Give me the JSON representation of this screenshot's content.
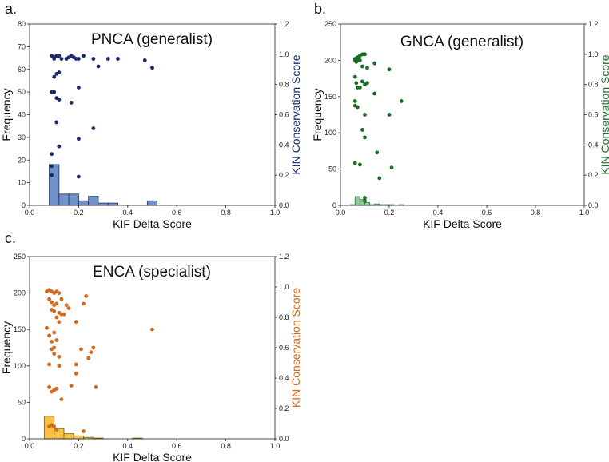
{
  "chart_data": [
    {
      "type": "scatter",
      "panel_label": "a.",
      "title": "PNCA (generalist)",
      "xlabel": "KIF Delta Score",
      "ylabel": "Frequency",
      "y2label": "KIN Conservation Score",
      "xlim": [
        0.0,
        1.0
      ],
      "ylim": [
        0,
        80
      ],
      "y2lim": [
        0.0,
        1.2
      ],
      "xticks": [
        "0.0",
        "0.2",
        "0.4",
        "0.6",
        "0.8",
        "1.0"
      ],
      "yticks": [
        "0",
        "10",
        "20",
        "30",
        "40",
        "50",
        "60",
        "70",
        "80"
      ],
      "y2ticks": [
        "0.0",
        "0.2",
        "0.4",
        "0.6",
        "0.8",
        "1.0",
        "1.2"
      ],
      "colors": {
        "bar_fill": "#7092c8",
        "bar_edge": "#2a3d63",
        "point": "#1a2a6c",
        "y2label": "#1a2a6c"
      },
      "histogram": {
        "bin_edges": [
          0.08,
          0.12,
          0.16,
          0.2,
          0.24,
          0.28,
          0.32,
          0.36,
          0.4,
          0.44,
          0.48,
          0.52
        ],
        "counts": [
          18,
          5,
          5,
          2,
          4,
          1,
          1,
          0,
          0,
          0,
          2
        ]
      },
      "points": [
        [
          0.09,
          0.99
        ],
        [
          0.1,
          0.98
        ],
        [
          0.1,
          0.97
        ],
        [
          0.11,
          0.99
        ],
        [
          0.12,
          0.99
        ],
        [
          0.13,
          0.97
        ],
        [
          0.15,
          0.97
        ],
        [
          0.16,
          0.98
        ],
        [
          0.17,
          0.99
        ],
        [
          0.18,
          0.98
        ],
        [
          0.19,
          0.97
        ],
        [
          0.2,
          0.97
        ],
        [
          0.22,
          0.99
        ],
        [
          0.26,
          0.97
        ],
        [
          0.28,
          0.92
        ],
        [
          0.32,
          0.97
        ],
        [
          0.36,
          0.97
        ],
        [
          0.47,
          0.96
        ],
        [
          0.5,
          0.91
        ],
        [
          0.1,
          0.85
        ],
        [
          0.11,
          0.87
        ],
        [
          0.12,
          0.88
        ],
        [
          0.1,
          0.75
        ],
        [
          0.09,
          0.75
        ],
        [
          0.12,
          0.7
        ],
        [
          0.11,
          0.71
        ],
        [
          0.17,
          0.68
        ],
        [
          0.2,
          0.78
        ],
        [
          0.11,
          0.55
        ],
        [
          0.26,
          0.51
        ],
        [
          0.2,
          0.44
        ],
        [
          0.12,
          0.39
        ],
        [
          0.09,
          0.34
        ],
        [
          0.09,
          0.26
        ],
        [
          0.09,
          0.2
        ],
        [
          0.2,
          0.19
        ]
      ]
    },
    {
      "type": "scatter",
      "panel_label": "b.",
      "title": "GNCA (generalist)",
      "xlabel": "KIF Delta Score",
      "ylabel": "Frequency",
      "y2label": "KIN Conservation Score",
      "xlim": [
        0.0,
        1.0
      ],
      "ylim": [
        0,
        250
      ],
      "y2lim": [
        0.0,
        1.2
      ],
      "xticks": [
        "0.0",
        "0.2",
        "0.4",
        "0.6",
        "0.8",
        "1.0"
      ],
      "yticks": [
        "0",
        "50",
        "100",
        "150",
        "200",
        "250"
      ],
      "y2ticks": [
        "0.0",
        "0.2",
        "0.4",
        "0.6",
        "0.8",
        "1.0",
        "1.2"
      ],
      "colors": {
        "bar_fill": "#8fc79a",
        "bar_edge": "#3e7a49",
        "point": "#1b6b26",
        "y2label": "#1b6b26"
      },
      "histogram": {
        "bin_edges": [
          0.04,
          0.06,
          0.08,
          0.1,
          0.12,
          0.14,
          0.16,
          0.18,
          0.2,
          0.22,
          0.24,
          0.26
        ],
        "counts": [
          1,
          12,
          8,
          4,
          1,
          2,
          1,
          1,
          1,
          0,
          1
        ]
      },
      "points": [
        [
          0.06,
          0.96
        ],
        [
          0.065,
          0.97
        ],
        [
          0.07,
          0.98
        ],
        [
          0.07,
          0.96
        ],
        [
          0.075,
          0.97
        ],
        [
          0.08,
          0.99
        ],
        [
          0.09,
          1.0
        ],
        [
          0.1,
          1.0
        ],
        [
          0.06,
          0.97
        ],
        [
          0.065,
          0.95
        ],
        [
          0.08,
          0.96
        ],
        [
          0.09,
          0.92
        ],
        [
          0.11,
          0.91
        ],
        [
          0.14,
          0.94
        ],
        [
          0.2,
          0.9
        ],
        [
          0.06,
          0.85
        ],
        [
          0.065,
          0.81
        ],
        [
          0.07,
          0.78
        ],
        [
          0.09,
          0.82
        ],
        [
          0.1,
          0.8
        ],
        [
          0.11,
          0.81
        ],
        [
          0.08,
          0.78
        ],
        [
          0.14,
          0.74
        ],
        [
          0.06,
          0.69
        ],
        [
          0.07,
          0.65
        ],
        [
          0.06,
          0.66
        ],
        [
          0.1,
          0.6
        ],
        [
          0.25,
          0.69
        ],
        [
          0.2,
          0.6
        ],
        [
          0.09,
          0.5
        ],
        [
          0.1,
          0.45
        ],
        [
          0.15,
          0.35
        ],
        [
          0.06,
          0.28
        ],
        [
          0.08,
          0.27
        ],
        [
          0.21,
          0.25
        ],
        [
          0.16,
          0.18
        ],
        [
          0.1,
          0.05
        ],
        [
          0.1,
          0.03
        ]
      ]
    },
    {
      "type": "scatter",
      "panel_label": "c.",
      "title": "ENCA (specialist)",
      "xlabel": "KIF Delta Score",
      "ylabel": "Frequency",
      "y2label": "KIN Conservation Score",
      "xlim": [
        0.0,
        1.0
      ],
      "ylim": [
        0,
        250
      ],
      "y2lim": [
        0.0,
        1.2
      ],
      "xticks": [
        "0.0",
        "0.2",
        "0.4",
        "0.6",
        "0.8",
        "1.0"
      ],
      "yticks": [
        "0",
        "50",
        "100",
        "150",
        "200",
        "250"
      ],
      "y2ticks": [
        "0.0",
        "0.2",
        "0.4",
        "0.6",
        "0.8",
        "1.0",
        "1.2"
      ],
      "colors": {
        "bar_fill": "#f5c242",
        "bar_edge": "#8a6a10",
        "point": "#d2691e",
        "y2label": "#d2691e"
      },
      "histogram": {
        "bin_edges": [
          0.06,
          0.1,
          0.14,
          0.18,
          0.22,
          0.26,
          0.3,
          0.34,
          0.38,
          0.42,
          0.46,
          0.5
        ],
        "counts": [
          31,
          14,
          7,
          4,
          2,
          1,
          0,
          0,
          0,
          1,
          0
        ]
      },
      "points": [
        [
          0.07,
          0.97
        ],
        [
          0.08,
          0.98
        ],
        [
          0.09,
          0.97
        ],
        [
          0.1,
          0.96
        ],
        [
          0.11,
          0.97
        ],
        [
          0.12,
          0.96
        ],
        [
          0.08,
          0.92
        ],
        [
          0.09,
          0.9
        ],
        [
          0.1,
          0.88
        ],
        [
          0.11,
          0.89
        ],
        [
          0.13,
          0.92
        ],
        [
          0.15,
          0.88
        ],
        [
          0.09,
          0.85
        ],
        [
          0.1,
          0.84
        ],
        [
          0.12,
          0.83
        ],
        [
          0.14,
          0.82
        ],
        [
          0.16,
          0.86
        ],
        [
          0.23,
          0.94
        ],
        [
          0.22,
          0.89
        ],
        [
          0.19,
          0.77
        ],
        [
          0.11,
          0.8
        ],
        [
          0.12,
          0.77
        ],
        [
          0.13,
          0.82
        ],
        [
          0.5,
          0.72
        ],
        [
          0.07,
          0.73
        ],
        [
          0.08,
          0.68
        ],
        [
          0.1,
          0.7
        ],
        [
          0.09,
          0.64
        ],
        [
          0.11,
          0.65
        ],
        [
          0.1,
          0.6
        ],
        [
          0.09,
          0.59
        ],
        [
          0.1,
          0.56
        ],
        [
          0.26,
          0.6
        ],
        [
          0.25,
          0.57
        ],
        [
          0.21,
          0.59
        ],
        [
          0.12,
          0.54
        ],
        [
          0.08,
          0.49
        ],
        [
          0.12,
          0.48
        ],
        [
          0.19,
          0.49
        ],
        [
          0.24,
          0.53
        ],
        [
          0.19,
          0.43
        ],
        [
          0.08,
          0.34
        ],
        [
          0.1,
          0.32
        ],
        [
          0.11,
          0.33
        ],
        [
          0.09,
          0.31
        ],
        [
          0.17,
          0.35
        ],
        [
          0.27,
          0.34
        ],
        [
          0.13,
          0.26
        ],
        [
          0.09,
          0.09
        ],
        [
          0.08,
          0.08
        ],
        [
          0.1,
          0.08
        ],
        [
          0.11,
          0.06
        ],
        [
          0.22,
          0.05
        ]
      ]
    }
  ]
}
